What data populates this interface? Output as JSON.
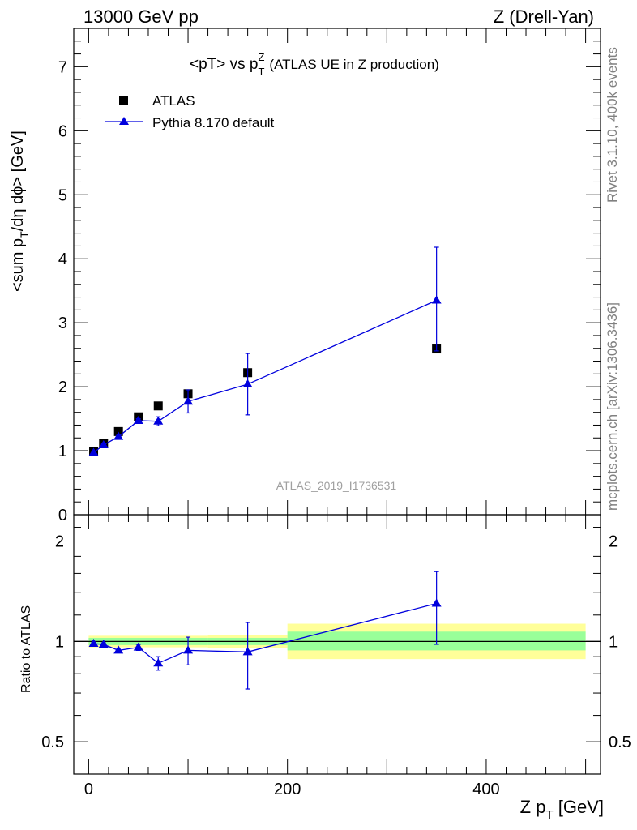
{
  "header": {
    "energy_label": "13000 GeV pp",
    "process_label": "Z (Drell-Yan)"
  },
  "side_labels": {
    "rivet": "Rivet 3.1.10,  400k events",
    "mcplots": "mcplots.cern.ch [arXiv:1306.3436]"
  },
  "chart_data": [
    {
      "type": "scatter",
      "panel": "main",
      "title": "<pT> vs p_T^Z (ATLAS UE in Z production)",
      "title_parts": {
        "main": "<pT> vs p",
        "sup": "Z",
        "sub": "T",
        "tail": "(ATLAS UE in Z production)"
      },
      "analysis_label": "ATLAS_2019_I1736531",
      "ylabel": "<sum p_T/dη dϕ> [GeV]",
      "ylabel_parts": {
        "pre": "<sum p",
        "sub": "T",
        "post": "/dη dϕ> [GeV]"
      },
      "xlim": [
        -15,
        515
      ],
      "ylim": [
        0,
        7.6
      ],
      "y_ticks": [
        0,
        1,
        2,
        3,
        4,
        5,
        6,
        7
      ],
      "legend_position": "top-left",
      "series": [
        {
          "name": "ATLAS",
          "marker": "square",
          "color": "#000000",
          "x": [
            5,
            15,
            30,
            50,
            70,
            100,
            160,
            350
          ],
          "y": [
            0.99,
            1.12,
            1.3,
            1.53,
            1.7,
            1.89,
            2.22,
            2.59
          ]
        },
        {
          "name": "Pythia 8.170 default",
          "marker": "triangle",
          "color": "#0000dd",
          "x": [
            5,
            15,
            30,
            50,
            70,
            100,
            160,
            350
          ],
          "y": [
            0.97,
            1.09,
            1.22,
            1.47,
            1.46,
            1.77,
            2.04,
            3.35
          ],
          "err_low": [
            0.02,
            0.02,
            0.02,
            0.03,
            0.07,
            0.18,
            0.48,
            0.79
          ],
          "err_high": [
            0.02,
            0.02,
            0.02,
            0.03,
            0.07,
            0.18,
            0.48,
            0.83
          ]
        }
      ]
    },
    {
      "type": "scatter",
      "panel": "ratio",
      "ylabel": "Ratio to ATLAS",
      "xlabel": "Z p_T [GeV]",
      "xlabel_parts": {
        "pre": "Z p",
        "sub": "T",
        "post": " [GeV]"
      },
      "xlim": [
        -15,
        515
      ],
      "ylim": [
        0.4,
        2.4
      ],
      "y_scale": "log",
      "x_ticks": [
        0,
        200,
        400
      ],
      "y_tick_labels": [
        0.5,
        1,
        2
      ],
      "reference_line": 1,
      "bands": [
        {
          "x_low": 0,
          "x_high": 120,
          "inner": [
            0.975,
            1.025
          ],
          "outer": [
            0.96,
            1.04
          ]
        },
        {
          "x_low": 120,
          "x_high": 200,
          "inner": [
            0.975,
            1.025
          ],
          "outer": [
            0.955,
            1.045
          ]
        },
        {
          "x_low": 200,
          "x_high": 500,
          "inner": [
            0.94,
            1.07
          ],
          "outer": [
            0.885,
            1.13
          ]
        }
      ],
      "series": [
        {
          "name": "Pythia 8.170 default",
          "marker": "triangle",
          "color": "#0000dd",
          "x": [
            5,
            15,
            30,
            50,
            70,
            100,
            160,
            350
          ],
          "y": [
            0.985,
            0.98,
            0.94,
            0.96,
            0.86,
            0.94,
            0.93,
            1.3
          ],
          "err_low": [
            0.01,
            0.01,
            0.015,
            0.02,
            0.04,
            0.09,
            0.21,
            0.32
          ],
          "err_high": [
            0.01,
            0.01,
            0.015,
            0.02,
            0.04,
            0.09,
            0.21,
            0.32
          ]
        }
      ]
    }
  ]
}
